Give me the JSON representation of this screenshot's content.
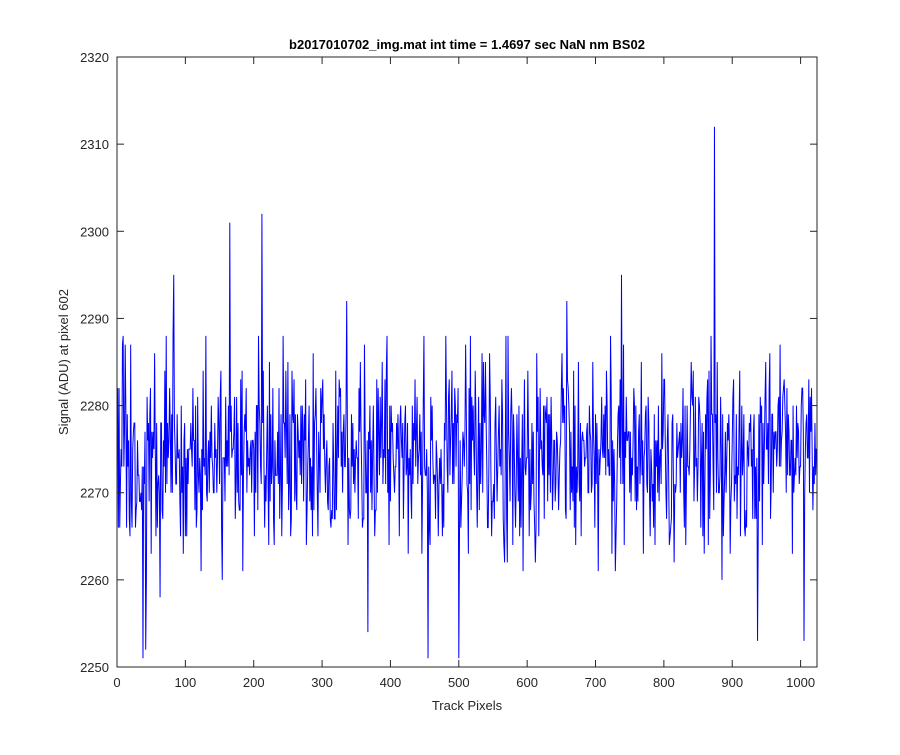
{
  "chart_data": {
    "type": "line",
    "title": "b2017010702_img.mat int time = 1.4697 sec  NaN nm BS02",
    "xlabel": "Track Pixels",
    "ylabel": "Signal (ADU) at pixel 602",
    "xlim": [
      0,
      1024
    ],
    "ylim": [
      2250,
      2320
    ],
    "xticks": [
      0,
      100,
      200,
      300,
      400,
      500,
      600,
      700,
      800,
      900,
      1000
    ],
    "yticks": [
      2250,
      2260,
      2270,
      2280,
      2290,
      2300,
      2310,
      2320
    ],
    "grid": false,
    "legend": "none",
    "line_color": "#0000ff",
    "series": [
      {
        "x_start": 1,
        "x_step": 1,
        "mean": 2274.5,
        "std": 5.6,
        "values_note_count": 1024,
        "peaks": [
          {
            "x": 83,
            "y": 2295
          },
          {
            "x": 165,
            "y": 2301
          },
          {
            "x": 212,
            "y": 2302
          },
          {
            "x": 336,
            "y": 2292
          },
          {
            "x": 658,
            "y": 2292
          },
          {
            "x": 738,
            "y": 2295
          },
          {
            "x": 874,
            "y": 2312
          }
        ],
        "troughs": [
          {
            "x": 38,
            "y": 2251
          },
          {
            "x": 42,
            "y": 2252
          },
          {
            "x": 455,
            "y": 2251
          },
          {
            "x": 500,
            "y": 2251
          },
          {
            "x": 937,
            "y": 2253
          },
          {
            "x": 1005,
            "y": 2253
          }
        ]
      }
    ]
  }
}
